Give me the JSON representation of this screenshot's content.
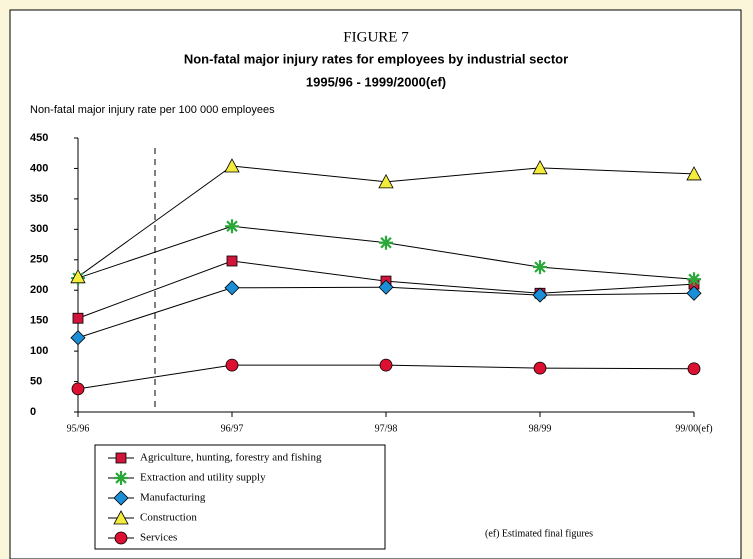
{
  "chart_data": {
    "type": "line",
    "figure_label": "FIGURE 7",
    "title": "Non-fatal major injury rates for employees by industrial sector",
    "subtitle": "1995/96 - 1999/2000(ef)",
    "y_label": "Non-fatal major injury rate per 100 000 employees",
    "note": "(ef) Estimated final figures",
    "categories": [
      "95/96",
      "96/97",
      "97/98",
      "98/99",
      "99/00(ef)"
    ],
    "ylim": [
      0,
      450
    ],
    "yticks": [
      0,
      50,
      100,
      150,
      200,
      250,
      300,
      350,
      400,
      450
    ],
    "series": [
      {
        "name": "Agriculture, hunting, forestry and fishing",
        "color": "#d0143a",
        "marker": "square",
        "values": [
          154,
          248,
          215,
          195,
          210
        ]
      },
      {
        "name": "Extraction and utility supply",
        "color": "#2ca83a",
        "marker": "asterisk",
        "values": [
          220,
          305,
          278,
          238,
          218
        ]
      },
      {
        "name": "Manufacturing",
        "color": "#1a8fd8",
        "marker": "diamond",
        "values": [
          122,
          204,
          205,
          192,
          195
        ]
      },
      {
        "name": "Construction",
        "color": "#f4ec3c",
        "marker": "triangle",
        "values": [
          222,
          404,
          378,
          401,
          391
        ]
      },
      {
        "name": "Services",
        "color": "#dc1030",
        "marker": "circle",
        "values": [
          38,
          77,
          77,
          72,
          71
        ]
      }
    ]
  }
}
